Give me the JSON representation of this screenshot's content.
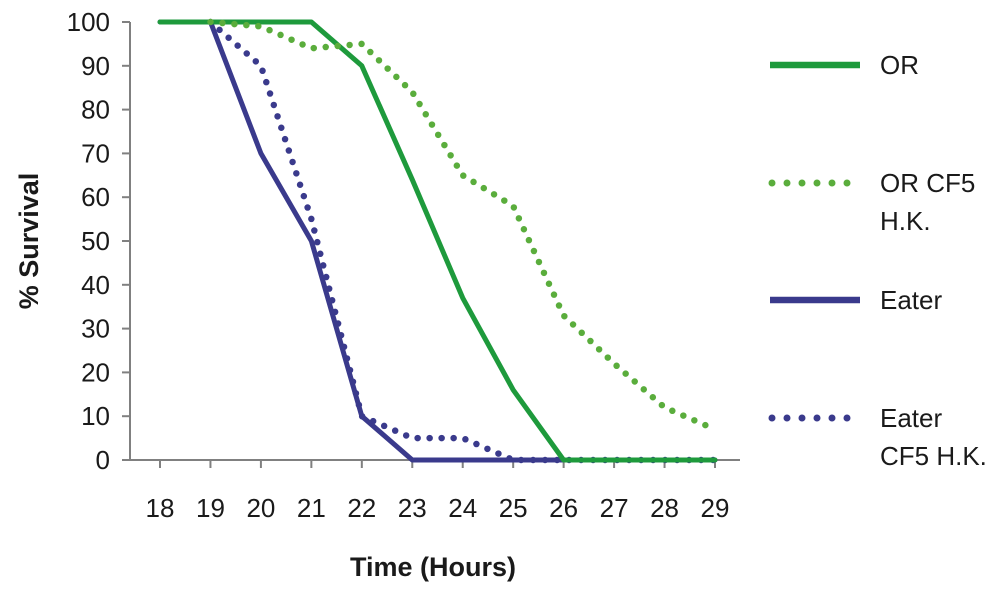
{
  "chart_data": {
    "type": "line",
    "xlabel": "Time (Hours)",
    "ylabel": "% Survival",
    "x": [
      18,
      19,
      20,
      21,
      22,
      23,
      24,
      25,
      26,
      27,
      28,
      29
    ],
    "xlim": [
      18,
      29
    ],
    "ylim": [
      0,
      100
    ],
    "yticks": [
      0,
      10,
      20,
      30,
      40,
      50,
      60,
      70,
      80,
      90,
      100
    ],
    "legend_position": "right",
    "grid": false,
    "series": [
      {
        "name": "OR",
        "color": "#1e9a3c",
        "style": "solid",
        "points": [
          [
            18,
            100
          ],
          [
            19,
            100
          ],
          [
            20,
            100
          ],
          [
            21,
            100
          ],
          [
            22,
            90
          ],
          [
            23,
            64
          ],
          [
            24,
            37
          ],
          [
            25,
            16
          ],
          [
            26,
            0
          ],
          [
            27,
            0
          ],
          [
            28,
            0
          ],
          [
            29,
            0
          ]
        ]
      },
      {
        "name": "OR CF5 H.K.",
        "color": "#5aad3c",
        "style": "dotted",
        "points": [
          [
            19,
            100
          ],
          [
            20,
            99
          ],
          [
            21,
            94
          ],
          [
            22,
            95
          ],
          [
            23,
            84
          ],
          [
            24,
            65
          ],
          [
            25,
            58
          ],
          [
            26,
            33
          ],
          [
            27,
            22
          ],
          [
            28,
            12
          ],
          [
            29,
            7
          ]
        ]
      },
      {
        "name": "Eater",
        "color": "#3a3a8c",
        "style": "solid",
        "points": [
          [
            18,
            100
          ],
          [
            19,
            100
          ],
          [
            20,
            70
          ],
          [
            21,
            50
          ],
          [
            22,
            10
          ],
          [
            23,
            0
          ],
          [
            24,
            0
          ],
          [
            25,
            0
          ],
          [
            26,
            0
          ],
          [
            27,
            0
          ],
          [
            28,
            0
          ],
          [
            29,
            0
          ]
        ]
      },
      {
        "name": "Eater CF5 H.K.",
        "color": "#3a3a8c",
        "style": "dotted",
        "points": [
          [
            19,
            100
          ],
          [
            20,
            90
          ],
          [
            21,
            55
          ],
          [
            22,
            10
          ],
          [
            23,
            5
          ],
          [
            24,
            5
          ],
          [
            25,
            0
          ],
          [
            26,
            0
          ],
          [
            27,
            0
          ],
          [
            28,
            0
          ],
          [
            29,
            0
          ]
        ]
      }
    ],
    "legend": [
      {
        "label_lines": [
          "OR"
        ]
      },
      {
        "label_lines": [
          "OR CF5",
          "H.K."
        ]
      },
      {
        "label_lines": [
          "Eater"
        ]
      },
      {
        "label_lines": [
          "Eater",
          "CF5 H.K."
        ]
      }
    ]
  }
}
